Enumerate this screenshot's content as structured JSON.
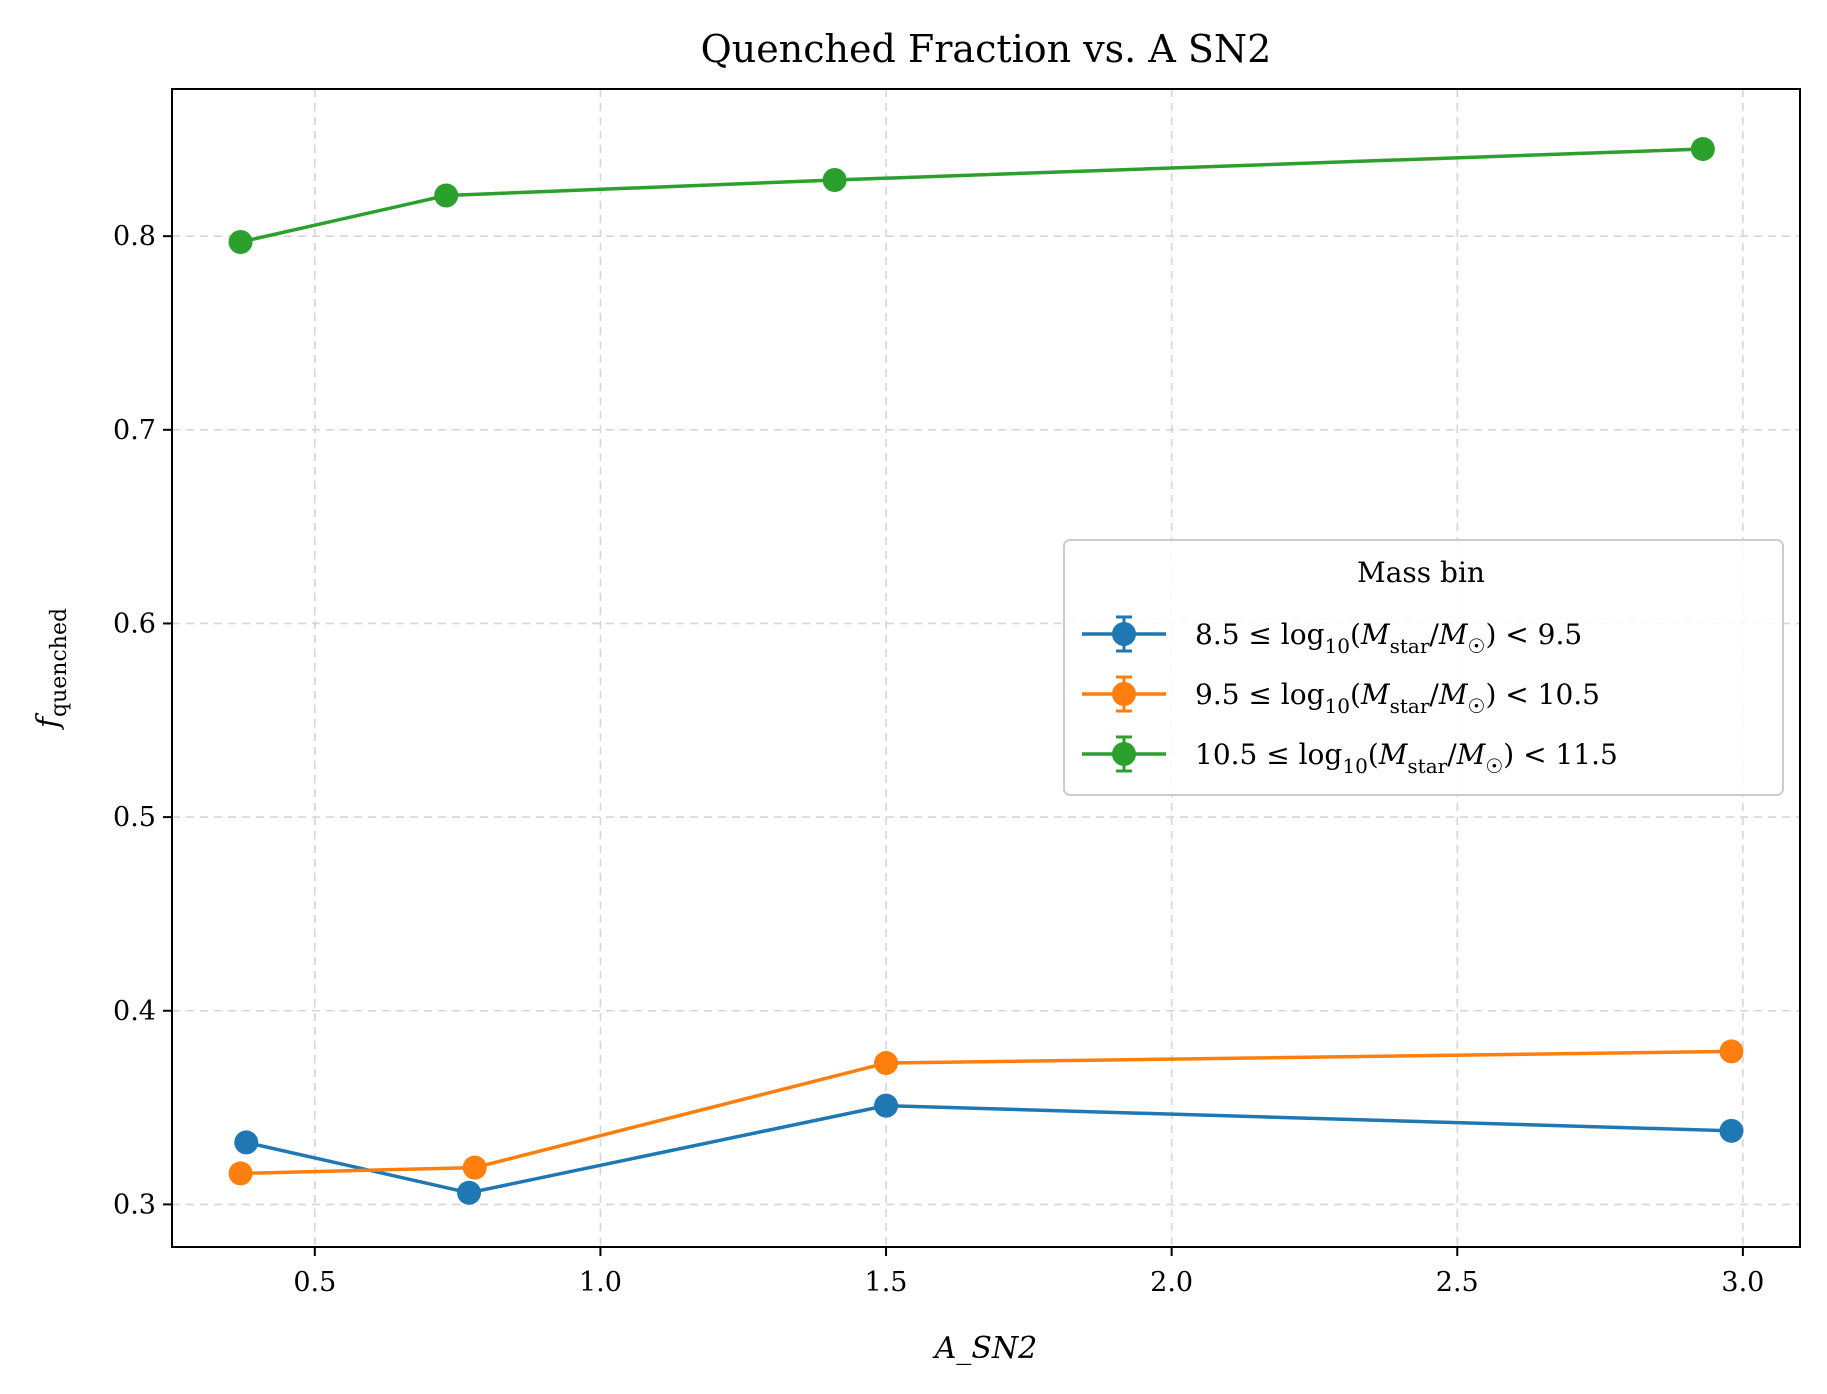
{
  "chart_data": {
    "type": "line",
    "title": "Quenched Fraction vs. A SN2",
    "xlabel": "A_SN2",
    "ylabel": "f_quenched",
    "ylabel_main": "f",
    "ylabel_sub": "quenched",
    "xlim": [
      0.25,
      3.1
    ],
    "ylim": [
      0.278,
      0.876
    ],
    "xticks": [
      0.5,
      1.0,
      1.5,
      2.0,
      2.5,
      3.0
    ],
    "xtick_labels": [
      "0.5",
      "1.0",
      "1.5",
      "2.0",
      "2.5",
      "3.0"
    ],
    "yticks": [
      0.3,
      0.4,
      0.5,
      0.6,
      0.7,
      0.8
    ],
    "ytick_labels": [
      "0.3",
      "0.4",
      "0.5",
      "0.6",
      "0.7",
      "0.8"
    ],
    "grid": true,
    "legend": {
      "title": "Mass bin",
      "placement": "center-right",
      "entries": [
        {
          "lo": "8.5",
          "hi": "9.5"
        },
        {
          "lo": "9.5",
          "hi": "10.5"
        },
        {
          "lo": "10.5",
          "hi": "11.5"
        }
      ]
    },
    "series": [
      {
        "name": "8.5 ≤ log10(Mstar/M☉) < 9.5",
        "color": "#1f77b4",
        "x": [
          0.38,
          0.77,
          1.5,
          2.98
        ],
        "y": [
          0.332,
          0.306,
          0.351,
          0.338
        ]
      },
      {
        "name": "9.5 ≤ log10(Mstar/M☉) < 10.5",
        "color": "#ff7f0e",
        "x": [
          0.37,
          0.78,
          1.5,
          2.98
        ],
        "y": [
          0.316,
          0.319,
          0.373,
          0.379
        ]
      },
      {
        "name": "10.5 ≤ log10(Mstar/M☉) < 11.5",
        "color": "#2ca02c",
        "x": [
          0.37,
          0.73,
          1.41,
          2.93
        ],
        "y": [
          0.797,
          0.821,
          0.829,
          0.845
        ]
      }
    ]
  }
}
